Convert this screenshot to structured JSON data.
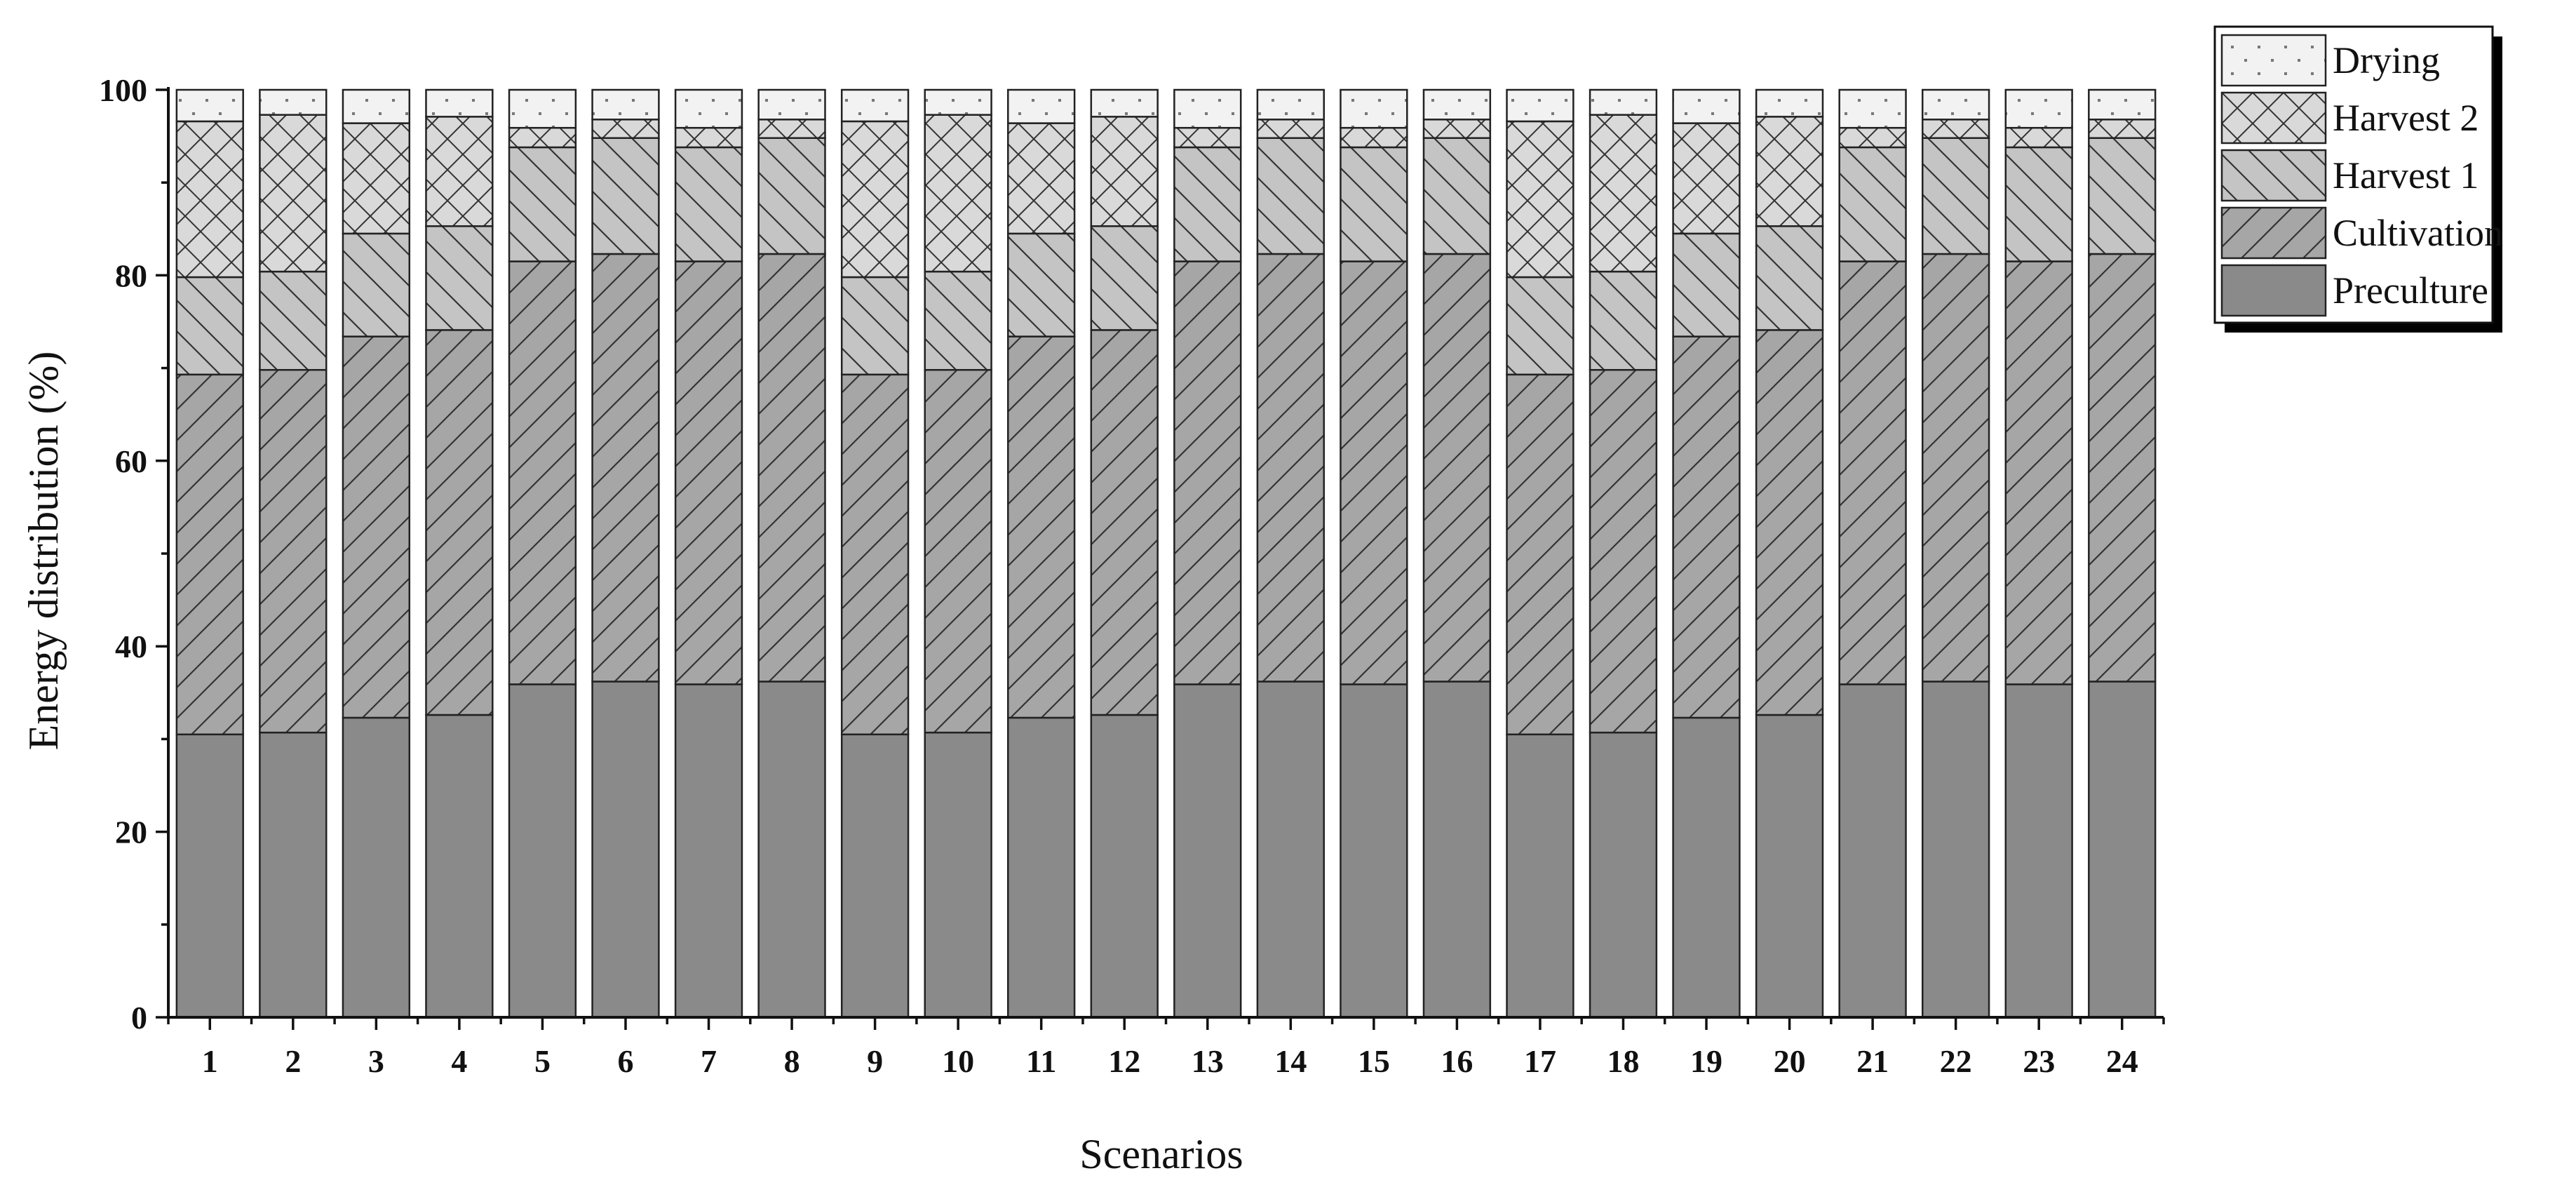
{
  "chart_data": {
    "type": "bar",
    "stacked": true,
    "xlabel": "Scenarios",
    "ylabel": "Energy distribution (%)",
    "ylim": [
      0,
      100
    ],
    "yticks": [
      0,
      20,
      40,
      60,
      80,
      100
    ],
    "grid": false,
    "legend_position": "top-right",
    "categories": [
      "1",
      "2",
      "3",
      "4",
      "5",
      "6",
      "7",
      "8",
      "9",
      "10",
      "11",
      "12",
      "13",
      "14",
      "15",
      "16",
      "17",
      "18",
      "19",
      "20",
      "21",
      "22",
      "23",
      "24"
    ],
    "series": [
      {
        "name": "Preculture",
        "pattern": "solid",
        "color": "#8a8a8a",
        "values": [
          30.5,
          30.7,
          32.3,
          32.6,
          35.9,
          36.2,
          35.9,
          36.2,
          30.5,
          30.7,
          32.3,
          32.6,
          35.9,
          36.2,
          35.9,
          36.2,
          30.5,
          30.7,
          32.3,
          32.6,
          35.9,
          36.2,
          35.9,
          36.2
        ]
      },
      {
        "name": "Cultivation",
        "pattern": "forward-diagonal",
        "color": "#a6a6a6",
        "values": [
          38.8,
          39.1,
          41.1,
          41.5,
          45.6,
          46.1,
          45.6,
          46.1,
          38.8,
          39.1,
          41.1,
          41.5,
          45.6,
          46.1,
          45.6,
          46.1,
          38.8,
          39.1,
          41.1,
          41.5,
          45.6,
          46.1,
          45.6,
          46.1
        ]
      },
      {
        "name": "Harvest 1",
        "pattern": "back-diagonal",
        "color": "#c4c4c4",
        "values": [
          10.5,
          10.6,
          11.1,
          11.2,
          12.3,
          12.5,
          12.3,
          12.5,
          10.5,
          10.6,
          11.1,
          11.2,
          12.3,
          12.5,
          12.3,
          12.5,
          10.5,
          10.6,
          11.1,
          11.2,
          12.3,
          12.5,
          12.3,
          12.5
        ]
      },
      {
        "name": "Harvest 2",
        "pattern": "crosshatch",
        "color": "#d9d9d9",
        "values": [
          16.8,
          16.9,
          11.9,
          11.8,
          2.1,
          2.0,
          2.1,
          2.0,
          16.8,
          16.9,
          11.9,
          11.8,
          2.1,
          2.0,
          2.1,
          2.0,
          16.8,
          16.9,
          11.9,
          11.8,
          2.1,
          2.0,
          2.1,
          2.0
        ]
      },
      {
        "name": "Drying",
        "pattern": "dots",
        "color": "#f2f2f2",
        "values": [
          3.4,
          2.7,
          3.6,
          2.9,
          4.1,
          3.2,
          4.1,
          3.2,
          3.4,
          2.7,
          3.6,
          2.9,
          4.1,
          3.2,
          4.1,
          3.2,
          3.4,
          2.7,
          3.6,
          2.9,
          4.1,
          3.2,
          4.1,
          3.2
        ]
      }
    ]
  }
}
